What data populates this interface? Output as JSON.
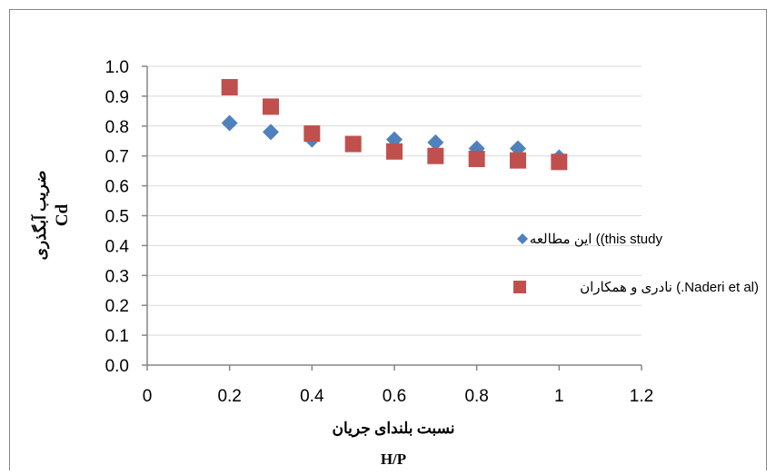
{
  "colors": {
    "series_1": "#4F81BD",
    "series_2": "#C0504D",
    "axis": "#868686",
    "frame": "#868686"
  },
  "chart_data": {
    "type": "scatter",
    "title": "",
    "xlabel_lines": [
      "نسبت بلندای جریان",
      "H/P"
    ],
    "ylabel_lines": [
      "ضریب آبگذری",
      "Cd"
    ],
    "xlim": [
      0,
      1.2
    ],
    "ylim": [
      0,
      1.0
    ],
    "x_ticks": [
      "0",
      "0.2",
      "0.4",
      "0.6",
      "0.8",
      "1",
      "1.2"
    ],
    "x_tick_values": [
      0,
      0.2,
      0.4,
      0.6,
      0.8,
      1.0,
      1.2
    ],
    "y_ticks": [
      "0.0",
      "0.1",
      "0.2",
      "0.3",
      "0.4",
      "0.5",
      "0.6",
      "0.7",
      "0.8",
      "0.9",
      "1.0"
    ],
    "y_tick_values": [
      0,
      0.1,
      0.2,
      0.3,
      0.4,
      0.5,
      0.6,
      0.7,
      0.8,
      0.9,
      1.0
    ],
    "grid": "horizontal",
    "legend_position": "right",
    "series": [
      {
        "name": "این مطالعه (this study)",
        "marker": "diamond",
        "color_key": "series_1",
        "x": [
          0.2,
          0.3,
          0.4,
          0.5,
          0.6,
          0.7,
          0.8,
          0.9,
          1.0
        ],
        "y": [
          0.81,
          0.78,
          0.755,
          0.74,
          0.755,
          0.745,
          0.725,
          0.725,
          0.695
        ]
      },
      {
        "name": "نادری و همکاران (Naderi et al.)",
        "marker": "square",
        "color_key": "series_2",
        "x": [
          0.2,
          0.3,
          0.4,
          0.5,
          0.6,
          0.7,
          0.8,
          0.9,
          1.0
        ],
        "y": [
          0.93,
          0.865,
          0.775,
          0.74,
          0.715,
          0.7,
          0.69,
          0.685,
          0.68
        ]
      }
    ]
  },
  "legend": {
    "entry_1": "این مطالعه ((this study",
    "entry_2": "نادری و همکاران (.Naderi et al)"
  }
}
